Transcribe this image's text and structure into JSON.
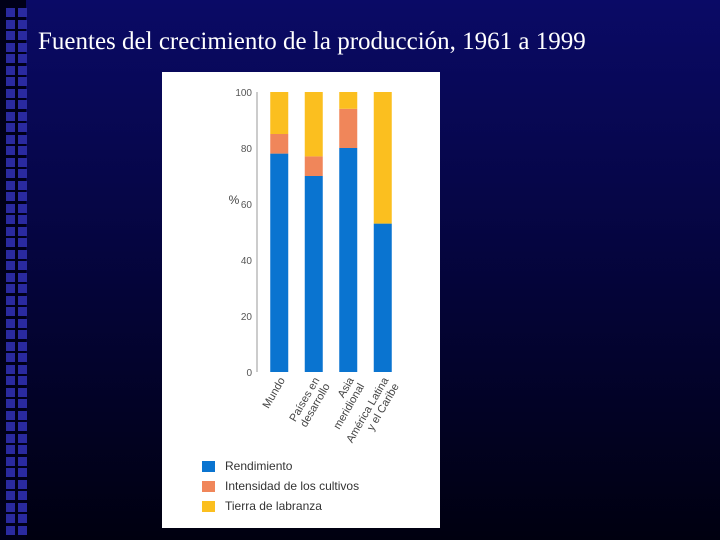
{
  "slide": {
    "title": "Fuentes del crecimiento de la producción, 1961 a 1999"
  },
  "chart_data": {
    "type": "bar",
    "stacked": true,
    "categories": [
      "Mundo",
      "Países en desarrollo",
      "Asia meridional",
      "América Latina y el Caribe"
    ],
    "category_lines": [
      [
        "Mundo"
      ],
      [
        "Países en",
        "desarrollo"
      ],
      [
        "Asia",
        "meridional"
      ],
      [
        "América Latina",
        "y el Caribe"
      ]
    ],
    "series": [
      {
        "name": "Rendimiento",
        "color": "#0a74d0",
        "values": [
          78,
          70,
          80,
          53
        ]
      },
      {
        "name": "Intensidad de los cultivos",
        "color": "#f0865a",
        "values": [
          7,
          7,
          14,
          0
        ]
      },
      {
        "name": "Tierra de labranza",
        "color": "#fbbf1f",
        "values": [
          15,
          23,
          6,
          47
        ]
      }
    ],
    "ylabel": "%",
    "ylim": [
      0,
      100
    ],
    "yticks": [
      0,
      20,
      40,
      60,
      80,
      100
    ],
    "grid": false,
    "legend_position": "bottom"
  }
}
